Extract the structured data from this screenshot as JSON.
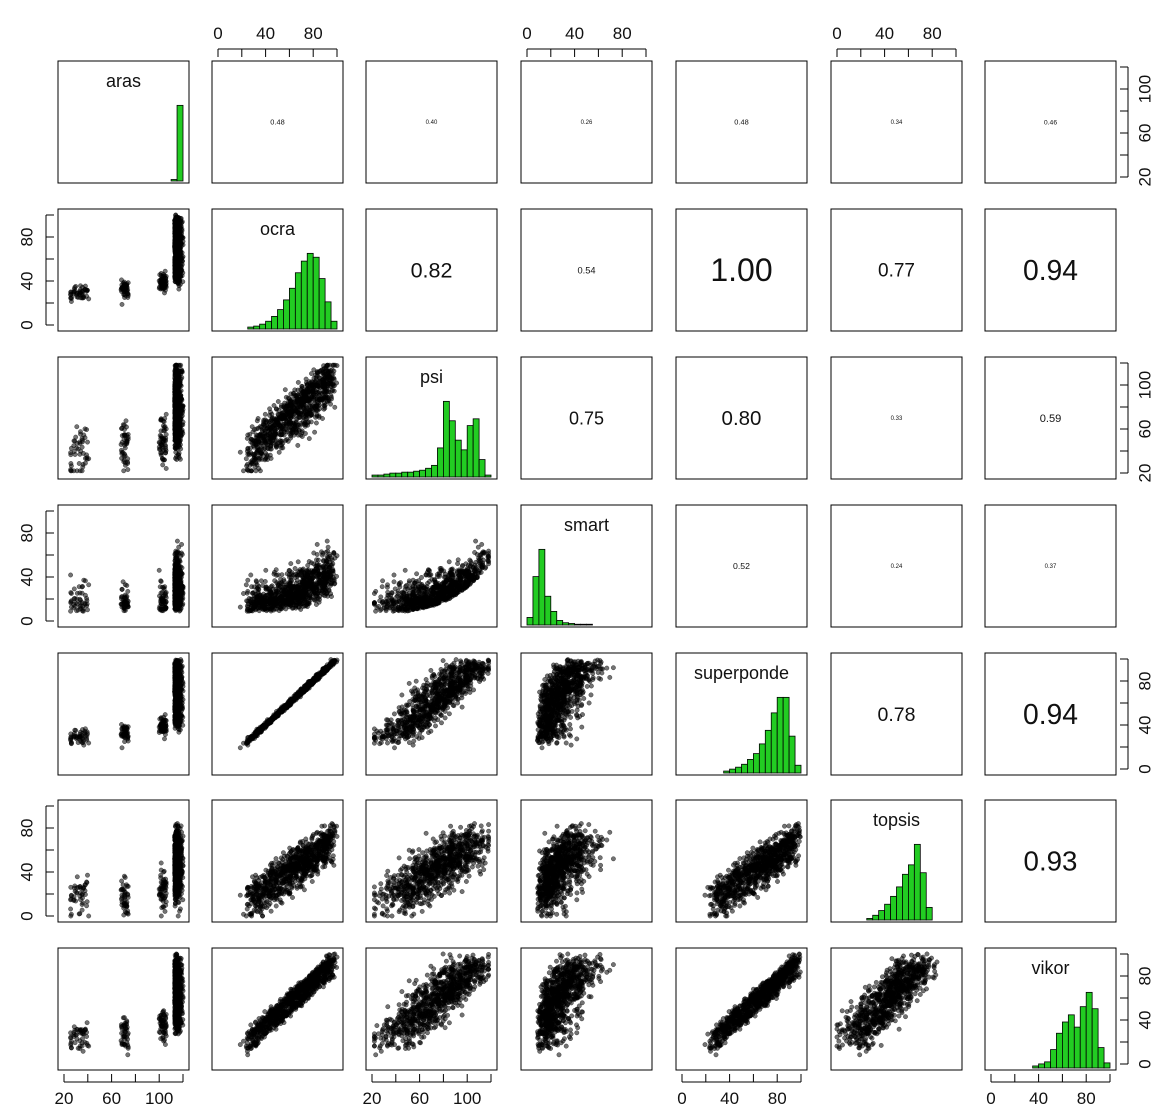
{
  "chart_data": {
    "type": "scatter",
    "variables": [
      "aras",
      "ocra",
      "psi",
      "smart",
      "superponde",
      "topsis",
      "vikor"
    ],
    "correlations": [
      [
        "aras",
        "ocra",
        "0.48"
      ],
      [
        "aras",
        "psi",
        "0.40"
      ],
      [
        "aras",
        "smart",
        "0.26"
      ],
      [
        "aras",
        "superponde",
        "0.48"
      ],
      [
        "aras",
        "topsis",
        "0.34"
      ],
      [
        "aras",
        "vikor",
        "0.46"
      ],
      [
        "ocra",
        "psi",
        "0.82"
      ],
      [
        "ocra",
        "smart",
        "0.54"
      ],
      [
        "ocra",
        "superponde",
        "1.00"
      ],
      [
        "ocra",
        "topsis",
        "0.77"
      ],
      [
        "ocra",
        "vikor",
        "0.94"
      ],
      [
        "psi",
        "smart",
        "0.75"
      ],
      [
        "psi",
        "superponde",
        "0.80"
      ],
      [
        "psi",
        "topsis",
        "0.33"
      ],
      [
        "psi",
        "vikor",
        "0.59"
      ],
      [
        "smart",
        "superponde",
        "0.52"
      ],
      [
        "smart",
        "topsis",
        "0.24"
      ],
      [
        "smart",
        "vikor",
        "0.37"
      ],
      [
        "superponde",
        "topsis",
        "0.78"
      ],
      [
        "superponde",
        "vikor",
        "0.94"
      ],
      [
        "topsis",
        "vikor",
        "0.93"
      ]
    ],
    "axis_ticks": {
      "top": [
        {
          "column": "ocra",
          "labels": [
            "0",
            "40",
            "80"
          ]
        },
        {
          "column": "smart",
          "labels": [
            "0",
            "40",
            "80"
          ]
        },
        {
          "column": "topsis",
          "labels": [
            "0",
            "40",
            "80"
          ]
        }
      ],
      "bottom": [
        {
          "column": "aras",
          "labels": [
            "20",
            "60",
            "100"
          ]
        },
        {
          "column": "psi",
          "labels": [
            "20",
            "60",
            "100"
          ]
        },
        {
          "column": "superponde",
          "labels": [
            "0",
            "40",
            "80"
          ]
        },
        {
          "column": "vikor",
          "labels": [
            "0",
            "40",
            "80"
          ]
        }
      ],
      "left": [
        {
          "row": "ocra",
          "labels": [
            "0",
            "40",
            "80"
          ]
        },
        {
          "row": "smart",
          "labels": [
            "0",
            "40",
            "80"
          ]
        },
        {
          "row": "topsis",
          "labels": [
            "0",
            "40",
            "80"
          ]
        }
      ],
      "right": [
        {
          "row": "aras",
          "labels": [
            "20",
            "60",
            "100"
          ]
        },
        {
          "row": "psi",
          "labels": [
            "20",
            "60",
            "100"
          ]
        },
        {
          "row": "superponde",
          "labels": [
            "0",
            "40",
            "80"
          ]
        },
        {
          "row": "vikor",
          "labels": [
            "0",
            "40",
            "80"
          ]
        }
      ]
    },
    "ranges": {
      "aras": [
        0,
        100
      ],
      "ocra": [
        0,
        100
      ],
      "psi": [
        0,
        100
      ],
      "smart": [
        0,
        100
      ],
      "superponde": [
        0,
        100
      ],
      "topsis": [
        0,
        80
      ],
      "vikor": [
        0,
        100
      ]
    },
    "histograms": {
      "aras": [
        0,
        0,
        0,
        0,
        0,
        0,
        0,
        0,
        0,
        0,
        0,
        0,
        0,
        0,
        0,
        0,
        0,
        0,
        2,
        100
      ],
      "ocra": [
        0,
        0,
        0,
        0,
        0,
        2,
        3,
        5,
        8,
        13,
        20,
        30,
        42,
        58,
        70,
        78,
        74,
        52,
        28,
        8
      ],
      "psi": [
        2,
        2,
        3,
        4,
        4,
        5,
        5,
        6,
        7,
        9,
        12,
        30,
        78,
        58,
        38,
        28,
        53,
        60,
        18,
        2
      ],
      "smart": [
        10,
        64,
        100,
        38,
        18,
        6,
        3,
        2,
        1,
        1,
        1,
        0,
        0,
        0,
        0,
        0,
        0,
        0,
        0,
        0
      ],
      "superponde": [
        0,
        0,
        0,
        0,
        0,
        0,
        0,
        2,
        4,
        6,
        9,
        14,
        20,
        30,
        44,
        62,
        78,
        78,
        38,
        8
      ],
      "topsis": [
        0,
        0,
        0,
        0,
        0,
        2,
        6,
        12,
        20,
        30,
        42,
        58,
        70,
        96,
        60,
        16,
        0,
        0,
        0,
        0
      ],
      "vikor": [
        0,
        0,
        0,
        0,
        0,
        0,
        0,
        2,
        4,
        6,
        18,
        34,
        45,
        52,
        40,
        60,
        74,
        58,
        20,
        5
      ]
    },
    "bar_color": "#22cc22",
    "point_color": "#000000"
  }
}
